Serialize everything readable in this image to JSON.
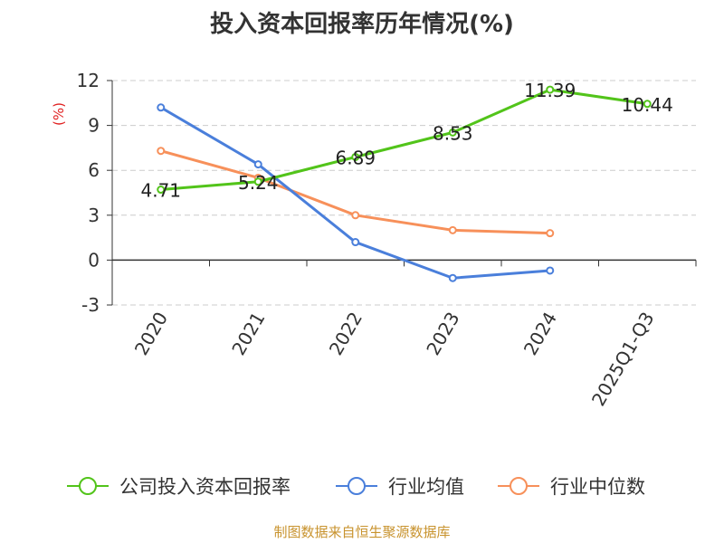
{
  "title": "投入资本回报率历年情况(%)",
  "source": "制图数据来自恒生聚源数据库",
  "chart_data": {
    "type": "line",
    "title": "投入资本回报率历年情况(%)",
    "ylabel": "(%)",
    "categories": [
      "2020",
      "2021",
      "2022",
      "2023",
      "2024",
      "2025Q1-Q3"
    ],
    "yticks": [
      12,
      9,
      6,
      3,
      0,
      -3
    ],
    "ylim": [
      -3,
      12
    ],
    "grid": true,
    "legend_position": "bottom",
    "series": [
      {
        "name": "公司投入资本回报率",
        "color": "#52c41a",
        "values": [
          4.71,
          5.24,
          6.89,
          8.53,
          11.39,
          10.44
        ],
        "labels": [
          "4.71",
          "5.24",
          "6.89",
          "8.53",
          "11.39",
          "10.44"
        ]
      },
      {
        "name": "行业均值",
        "color": "#4a7fdb",
        "values": [
          10.2,
          6.4,
          1.2,
          -1.2,
          -0.7,
          null
        ]
      },
      {
        "name": "行业中位数",
        "color": "#f7905a",
        "values": [
          7.3,
          5.5,
          3.0,
          2.0,
          1.8,
          null
        ]
      }
    ]
  }
}
